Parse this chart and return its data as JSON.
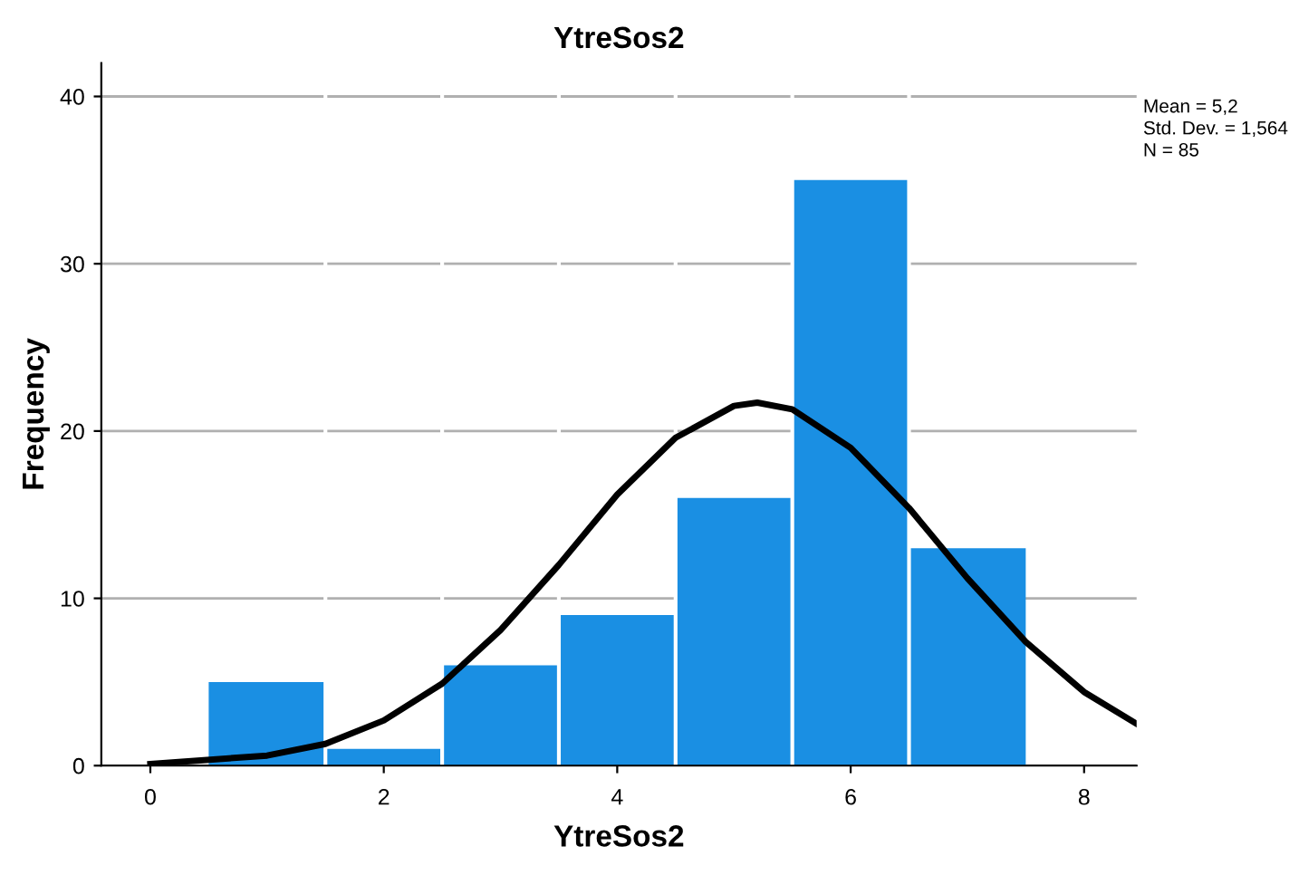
{
  "chart_data": {
    "type": "histogram",
    "title": "YtreSos2",
    "xlabel": "YtreSos2",
    "ylabel": "Frequency",
    "bins": [
      0.5,
      1.5,
      2.5,
      3.5,
      4.5,
      5.5,
      6.5,
      7.5
    ],
    "values": [
      5,
      1,
      6,
      9,
      16,
      35,
      13
    ],
    "color": "#1a8fe3",
    "series": [
      {
        "type": "line",
        "color": "#000000",
        "x": [
          0,
          1,
          1.5,
          2,
          2.5,
          3,
          3.5,
          4,
          4.5,
          5,
          5.2,
          5.5,
          6,
          6.5,
          7,
          7.5,
          8,
          8.45
        ],
        "values": [
          0.1,
          0.6,
          1.3,
          2.7,
          4.9,
          8.1,
          12.0,
          16.2,
          19.6,
          21.5,
          21.7,
          21.3,
          19.0,
          15.4,
          11.2,
          7.4,
          4.4,
          2.5
        ]
      }
    ],
    "xlim": [
      -0.42,
      8.45
    ],
    "xticks": [
      0,
      2,
      4,
      6,
      8
    ],
    "ylim": [
      0,
      42
    ],
    "yticks": [
      0,
      10,
      20,
      30,
      40
    ],
    "grid": "y",
    "legend": false,
    "annotations": [
      "Mean = 5,2",
      "Std. Dev. = 1,564",
      "N = 85"
    ]
  }
}
